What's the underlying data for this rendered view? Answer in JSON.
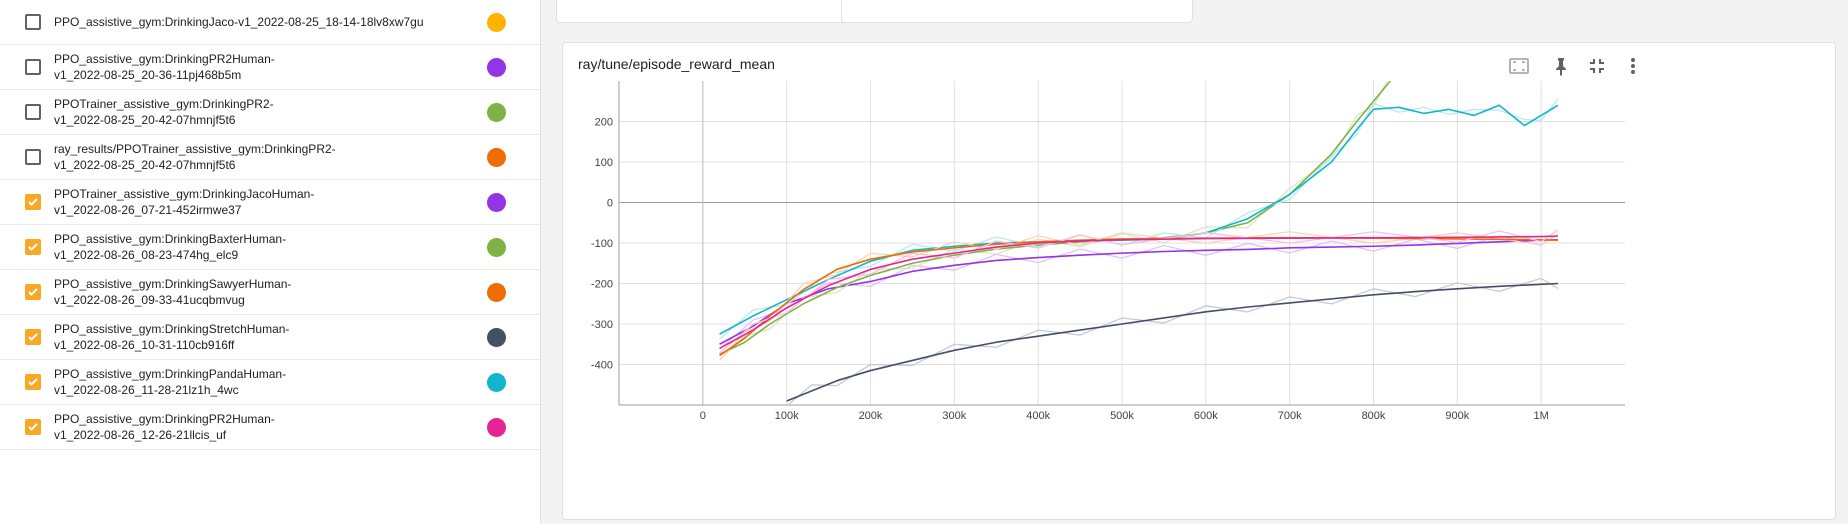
{
  "runs": [
    {
      "label": "PPO_assistive_gym:DrinkingJaco-v1_2022-08-25_18-14-18lv8xw7gu",
      "checked": false,
      "color": "#ffb300"
    },
    {
      "label": "PPO_assistive_gym:DrinkingPR2Human-\nv1_2022-08-25_20-36-11pj468b5m",
      "checked": false,
      "color": "#9334e6"
    },
    {
      "label": "PPOTrainer_assistive_gym:DrinkingPR2-\nv1_2022-08-25_20-42-07hmnjf5t6",
      "checked": false,
      "color": "#7cb342"
    },
    {
      "label": "ray_results/PPOTrainer_assistive_gym:DrinkingPR2-\nv1_2022-08-25_20-42-07hmnjf5t6",
      "checked": false,
      "color": "#ef6c00"
    },
    {
      "label": "PPOTrainer_assistive_gym:DrinkingJacoHuman-\nv1_2022-08-26_07-21-452irmwe37",
      "checked": true,
      "color": "#9334e6"
    },
    {
      "label": "PPO_assistive_gym:DrinkingBaxterHuman-\nv1_2022-08-26_08-23-474hg_elc9",
      "checked": true,
      "color": "#7cb342"
    },
    {
      "label": "PPO_assistive_gym:DrinkingSawyerHuman-\nv1_2022-08-26_09-33-41ucqbmvug",
      "checked": true,
      "color": "#ef6c00"
    },
    {
      "label": "PPO_assistive_gym:DrinkingStretchHuman-\nv1_2022-08-26_10-31-110cb916ff",
      "checked": true,
      "color": "#425066"
    },
    {
      "label": "PPO_assistive_gym:DrinkingPandaHuman-\nv1_2022-08-26_11-28-21lz1h_4wc",
      "checked": true,
      "color": "#12b5cb"
    },
    {
      "label": "PPO_assistive_gym:DrinkingPR2Human-\nv1_2022-08-26_12-26-21llcis_uf",
      "checked": true,
      "color": "#e52592"
    }
  ],
  "chart": {
    "title": "ray/tune/episode_reward_mean",
    "toolbar": [
      "fit-domain-icon",
      "pin-icon",
      "fullscreen-exit-icon",
      "more-vert-icon"
    ]
  },
  "chart_data": {
    "type": "line",
    "xlim": [
      -100000,
      1100000
    ],
    "ylim": [
      -500,
      300
    ],
    "x_ticks": [
      "0",
      "100k",
      "200k",
      "300k",
      "400k",
      "500k",
      "600k",
      "700k",
      "800k",
      "900k",
      "1M"
    ],
    "x_tick_values": [
      0,
      100000,
      200000,
      300000,
      400000,
      500000,
      600000,
      700000,
      800000,
      900000,
      1000000
    ],
    "y_ticks": [
      "200",
      "100",
      "0",
      "-100",
      "-200",
      "-300",
      "-400"
    ],
    "y_tick_values": [
      200,
      100,
      0,
      -100,
      -200,
      -300,
      -400
    ],
    "grid": true,
    "series": [
      {
        "color": "#425066",
        "x": [
          100000,
          130000,
          160000,
          200000,
          250000,
          300000,
          350000,
          400000,
          450000,
          500000,
          550000,
          600000,
          650000,
          700000,
          750000,
          800000,
          850000,
          900000,
          950000,
          1000000,
          1020000
        ],
        "y": [
          -490,
          -465,
          -440,
          -415,
          -390,
          -365,
          -345,
          -330,
          -315,
          -300,
          -285,
          -270,
          -258,
          -248,
          -238,
          -228,
          -220,
          -213,
          -207,
          -202,
          -200
        ]
      },
      {
        "color": "#9334e6",
        "x": [
          20000,
          60000,
          100000,
          150000,
          200000,
          250000,
          300000,
          350000,
          400000,
          450000,
          500000,
          550000,
          600000,
          650000,
          700000,
          750000,
          800000,
          850000,
          900000,
          950000,
          1000000,
          1020000
        ],
        "y": [
          -350,
          -305,
          -250,
          -213,
          -195,
          -170,
          -155,
          -143,
          -136,
          -130,
          -125,
          -121,
          -118,
          -116,
          -112,
          -110,
          -108,
          -105,
          -101,
          -97,
          -93,
          -92
        ]
      },
      {
        "color": "#7cb342",
        "x": [
          20000,
          50000,
          80000,
          120000,
          160000,
          200000,
          250000,
          300000,
          350000,
          400000,
          450000,
          500000,
          550000,
          600000,
          650000,
          700000,
          750000,
          780000,
          800000,
          820000
        ],
        "y": [
          -375,
          -345,
          -300,
          -250,
          -210,
          -180,
          -150,
          -130,
          -115,
          -105,
          -97,
          -92,
          -87,
          -75,
          -50,
          20,
          120,
          200,
          250,
          300
        ]
      },
      {
        "color": "#12b5cb",
        "x": [
          20000,
          60000,
          100000,
          150000,
          200000,
          250000,
          300000,
          350000,
          400000,
          450000,
          500000,
          550000,
          600000,
          650000,
          700000,
          750000,
          780000,
          800000,
          830000,
          860000,
          890000,
          920000,
          950000,
          980000,
          1000000,
          1020000
        ],
        "y": [
          -325,
          -280,
          -240,
          -190,
          -145,
          -118,
          -108,
          -100,
          -97,
          -95,
          -93,
          -90,
          -75,
          -40,
          20,
          100,
          180,
          230,
          235,
          220,
          230,
          215,
          240,
          190,
          215,
          240
        ]
      },
      {
        "color": "#ef6c00",
        "x": [
          20000,
          50000,
          80000,
          120000,
          160000,
          200000,
          250000,
          300000,
          350000,
          400000,
          450000,
          500000,
          600000,
          700000,
          800000,
          900000,
          1000000,
          1020000
        ],
        "y": [
          -378,
          -335,
          -280,
          -215,
          -165,
          -140,
          -122,
          -112,
          -103,
          -97,
          -93,
          -90,
          -88,
          -87,
          -88,
          -90,
          -92,
          -93
        ]
      },
      {
        "color": "#e52592",
        "x": [
          20000,
          60000,
          100000,
          150000,
          200000,
          250000,
          300000,
          350000,
          400000,
          450000,
          500000,
          600000,
          700000,
          800000,
          900000,
          950000,
          1000000,
          1020000
        ],
        "y": [
          -360,
          -315,
          -260,
          -205,
          -165,
          -140,
          -125,
          -110,
          -100,
          -95,
          -92,
          -89,
          -88,
          -87,
          -86,
          -85,
          -84,
          -83
        ]
      }
    ]
  }
}
